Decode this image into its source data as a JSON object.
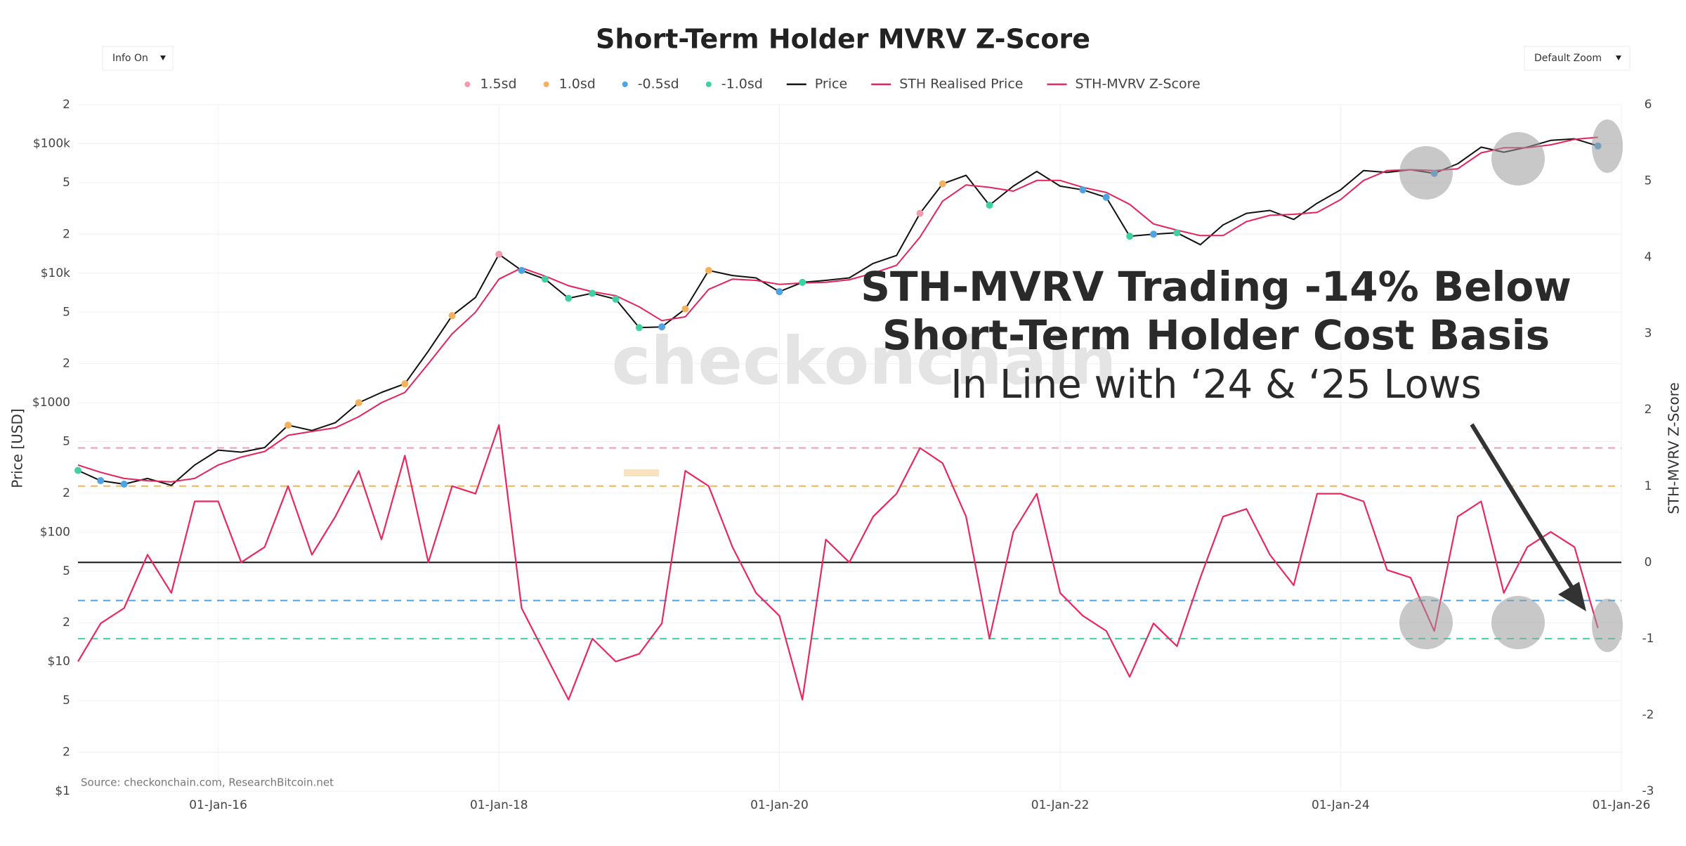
{
  "chart_data": {
    "type": "line",
    "title": "Short-Term Holder MVRV Z-Score",
    "controls": [
      "Info On",
      "Default Zoom"
    ],
    "y_label": "Price [USD]",
    "y2_label": "STH-MVRV Z-Score",
    "source": "Source: checkonchain.com, ResearchBitcoin.net",
    "watermark": "checkonchain",
    "annotations": [
      "STH-MVRV Trading -14% Below",
      "Short-Term Holder Cost Basis",
      "In Line with ‘24 & ‘25 Lows"
    ],
    "log_y": true,
    "grid": true,
    "x": [
      "2015-01-01",
      "2015-03-01",
      "2015-05-01",
      "2015-07-01",
      "2015-09-01",
      "2015-11-01",
      "2016-01-01",
      "2016-03-01",
      "2016-05-01",
      "2016-07-01",
      "2016-09-01",
      "2016-11-01",
      "2017-01-01",
      "2017-03-01",
      "2017-05-01",
      "2017-07-01",
      "2017-09-01",
      "2017-11-01",
      "2018-01-01",
      "2018-03-01",
      "2018-05-01",
      "2018-07-01",
      "2018-09-01",
      "2018-11-01",
      "2019-01-01",
      "2019-03-01",
      "2019-05-01",
      "2019-07-01",
      "2019-09-01",
      "2019-11-01",
      "2020-01-01",
      "2020-03-01",
      "2020-05-01",
      "2020-07-01",
      "2020-09-01",
      "2020-11-01",
      "2021-01-01",
      "2021-03-01",
      "2021-05-01",
      "2021-07-01",
      "2021-09-01",
      "2021-11-01",
      "2022-01-01",
      "2022-03-01",
      "2022-05-01",
      "2022-07-01",
      "2022-09-01",
      "2022-11-01",
      "2023-01-01",
      "2023-03-01",
      "2023-05-01",
      "2023-07-01",
      "2023-09-01",
      "2023-11-01",
      "2024-01-01",
      "2024-03-01",
      "2024-05-01",
      "2024-07-01",
      "2024-09-01",
      "2024-11-01",
      "2025-01-01",
      "2025-03-01",
      "2025-05-01",
      "2025-07-01",
      "2025-09-01",
      "2025-11-01"
    ],
    "series": [
      {
        "name": "Price",
        "color": "#111111",
        "axis": "y",
        "values": [
          300,
          250,
          235,
          260,
          230,
          330,
          430,
          415,
          450,
          670,
          610,
          700,
          1000,
          1200,
          1400,
          2500,
          4700,
          6500,
          14000,
          10500,
          9000,
          6400,
          7000,
          6300,
          3800,
          3850,
          5300,
          10500,
          9600,
          9200,
          7200,
          8500,
          8800,
          9200,
          11900,
          13700,
          29000,
          49000,
          57000,
          33500,
          47000,
          61000,
          47000,
          44000,
          38500,
          19300,
          20000,
          20500,
          16600,
          23600,
          29000,
          30500,
          26000,
          34700,
          44000,
          62000,
          60000,
          63000,
          59000,
          70000,
          94000,
          86000,
          94000,
          106000,
          109000,
          96000
        ]
      },
      {
        "name": "STH Realised Price",
        "color": "#e3245c",
        "axis": "y",
        "values": [
          330,
          290,
          260,
          250,
          245,
          260,
          330,
          380,
          420,
          560,
          600,
          640,
          780,
          1000,
          1200,
          2000,
          3400,
          5000,
          9000,
          11000,
          9500,
          8000,
          7200,
          6700,
          5500,
          4300,
          4600,
          7500,
          9000,
          8800,
          8200,
          8400,
          8500,
          8900,
          10000,
          11500,
          19000,
          36000,
          48000,
          46000,
          43000,
          52000,
          52000,
          46000,
          42000,
          34000,
          24000,
          21500,
          19500,
          19500,
          25000,
          28000,
          28500,
          29500,
          37000,
          52000,
          62000,
          63000,
          62000,
          64000,
          85000,
          93000,
          93000,
          98000,
          108000,
          112000
        ]
      },
      {
        "name": "STH-MVRV Z-Score",
        "color": "#e8285f",
        "axis": "y2",
        "values": [
          -1.3,
          -0.8,
          -0.6,
          0.1,
          -0.4,
          0.8,
          0.8,
          0.0,
          0.2,
          1.0,
          0.1,
          0.6,
          1.2,
          0.3,
          1.4,
          0.0,
          1.0,
          0.9,
          1.8,
          -0.6,
          -1.2,
          -1.8,
          -1.0,
          -1.3,
          -1.2,
          -0.8,
          1.2,
          1.0,
          0.2,
          -0.4,
          -0.7,
          -1.8,
          0.3,
          0.0,
          0.6,
          0.9,
          1.5,
          1.3,
          0.6,
          -1.0,
          0.4,
          0.9,
          -0.4,
          -0.7,
          -0.9,
          -1.5,
          -0.8,
          -1.1,
          -0.2,
          0.6,
          0.7,
          0.1,
          -0.3,
          0.9,
          0.9,
          0.8,
          -0.1,
          -0.2,
          -0.9,
          0.6,
          0.8,
          -0.4,
          0.2,
          0.4,
          0.2,
          -0.86
        ]
      }
    ],
    "bands": [
      {
        "name": "1.5sd",
        "color": "#f29aae",
        "level": 1.5
      },
      {
        "name": "1.0sd",
        "color": "#f5b25c",
        "level": 1.0
      },
      {
        "name": "-0.5sd",
        "color": "#4fa3e0",
        "level": -0.5
      },
      {
        "name": "-1.0sd",
        "color": "#3fd1a4",
        "level": -1.0
      }
    ],
    "xlim": [
      "2015-01-01",
      "2026-01-01"
    ],
    "xticks": [
      {
        "value": "2016-01-01",
        "label": "01-Jan-16"
      },
      {
        "value": "2018-01-01",
        "label": "01-Jan-18"
      },
      {
        "value": "2020-01-01",
        "label": "01-Jan-20"
      },
      {
        "value": "2022-01-01",
        "label": "01-Jan-22"
      },
      {
        "value": "2024-01-01",
        "label": "01-Jan-24"
      },
      {
        "value": "2026-01-01",
        "label": "01-Jan-26"
      }
    ],
    "ylim": [
      1,
      200000
    ],
    "yticks": [
      {
        "value": 1,
        "label": "$1"
      },
      2,
      5,
      {
        "value": 10,
        "label": "$10"
      },
      {
        "value": 20,
        "label": "2"
      },
      {
        "value": 50,
        "label": "5"
      },
      {
        "value": 100,
        "label": "$100"
      },
      {
        "value": 200,
        "label": "2"
      },
      {
        "value": 500,
        "label": "5"
      },
      {
        "value": 1000,
        "label": "$1000"
      },
      {
        "value": 2000,
        "label": "2"
      },
      {
        "value": 5000,
        "label": "5"
      },
      {
        "value": 10000,
        "label": "$10k"
      },
      {
        "value": 20000,
        "label": "2"
      },
      {
        "value": 50000,
        "label": "5"
      },
      {
        "value": 100000,
        "label": "$100k"
      },
      {
        "value": 200000,
        "label": "2"
      }
    ],
    "y2lim": [
      -3,
      6
    ],
    "y2ticks": [
      -3,
      -2,
      -1,
      0,
      1,
      2,
      3,
      4,
      5,
      6
    ]
  }
}
